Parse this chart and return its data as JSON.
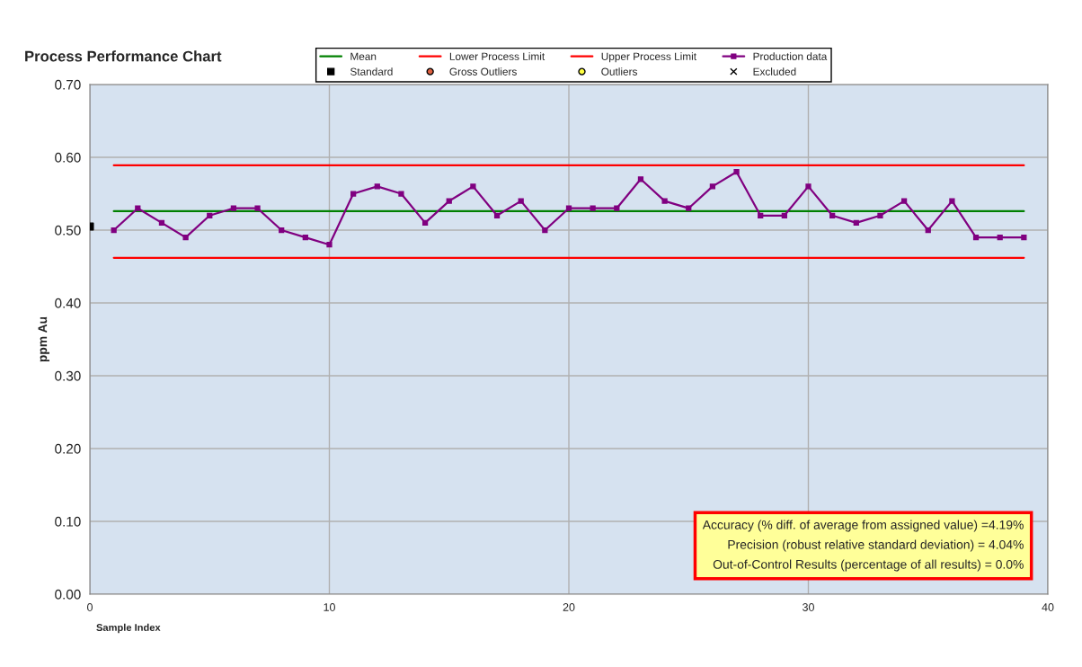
{
  "chart_data": {
    "type": "line",
    "title": "Process Performance Chart",
    "xlabel": "Sample Index",
    "ylabel": "ppm Au",
    "xlim": [
      0,
      40
    ],
    "xticks": [
      0,
      10,
      20,
      30,
      40
    ],
    "ylim": [
      0,
      0.7
    ],
    "yticks": [
      {
        "value": 0,
        "label": "0.00"
      },
      {
        "value": 0.1,
        "label": "0.10"
      },
      {
        "value": 0.2,
        "label": "0.20"
      },
      {
        "value": 0.3,
        "label": "0.30"
      },
      {
        "value": 0.4,
        "label": "0.40"
      },
      {
        "value": 0.5,
        "label": "0.50"
      },
      {
        "value": 0.6,
        "label": "0.60"
      },
      {
        "value": 0.7,
        "label": "0.70"
      }
    ],
    "grid": true,
    "legend": "top",
    "series": [
      {
        "name": "Mean",
        "type": "line",
        "color": "#008000",
        "marker": "none",
        "x": [
          1,
          39
        ],
        "values": [
          0.526,
          0.526
        ]
      },
      {
        "name": "Lower Process Limit",
        "type": "line",
        "color": "#ff0000",
        "marker": "none",
        "x": [
          1,
          39
        ],
        "values": [
          0.462,
          0.462
        ]
      },
      {
        "name": "Upper Process Limit",
        "type": "line",
        "color": "#ff0000",
        "marker": "none",
        "x": [
          1,
          39
        ],
        "values": [
          0.589,
          0.589
        ]
      },
      {
        "name": "Production data",
        "color": "#800080",
        "marker": "square",
        "x": [
          1,
          2,
          3,
          4,
          5,
          6,
          7,
          8,
          9,
          10,
          11,
          12,
          13,
          14,
          15,
          16,
          17,
          18,
          19,
          20,
          21,
          22,
          23,
          24,
          25,
          26,
          27,
          28,
          29,
          30,
          31,
          32,
          33,
          34,
          35,
          36,
          37,
          38,
          39
        ],
        "values": [
          0.5,
          0.53,
          0.51,
          0.49,
          0.52,
          0.53,
          0.53,
          0.5,
          0.49,
          0.48,
          0.55,
          0.56,
          0.55,
          0.51,
          0.54,
          0.56,
          0.52,
          0.54,
          0.5,
          0.53,
          0.53,
          0.53,
          0.57,
          0.54,
          0.53,
          0.56,
          0.58,
          0.52,
          0.52,
          0.56,
          0.52,
          0.51,
          0.52,
          0.54,
          0.5,
          0.54,
          0.49,
          0.49,
          0.49
        ]
      },
      {
        "name": "Standard",
        "type": "scatter",
        "color": "#000000",
        "marker": "square",
        "x": [
          0
        ],
        "values": [
          0.505
        ]
      },
      {
        "name": "Gross Outliers",
        "type": "scatter",
        "color": "#e06040",
        "marker": "circle"
      },
      {
        "name": "Outliers",
        "type": "scatter",
        "color": "#ffff40",
        "marker": "circle"
      },
      {
        "name": "Excluded",
        "type": "scatter",
        "color": "#000000",
        "marker": "cross"
      }
    ],
    "annotations": [
      "Accuracy (% diff. of average from assigned value) =4.19%",
      "Precision (robust relative standard deviation) = 4.04%",
      "Out-of-Control Results (percentage of all results) = 0.0%"
    ]
  }
}
